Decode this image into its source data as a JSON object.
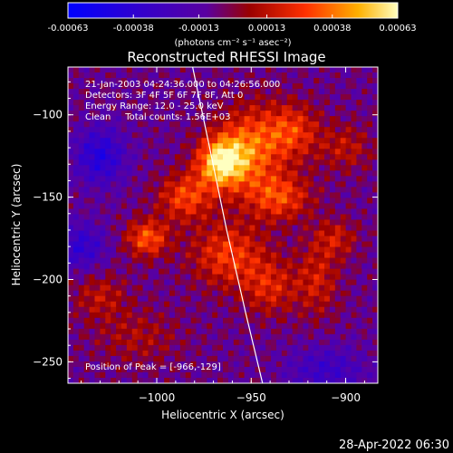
{
  "colorbar": {
    "ticks": [
      {
        "value": -0.00063,
        "label": "-0.00063"
      },
      {
        "value": -0.00038,
        "label": "-0.00038"
      },
      {
        "value": -0.00013,
        "label": "-0.00013"
      },
      {
        "value": 0.00013,
        "label": "0.00013"
      },
      {
        "value": 0.00038,
        "label": "0.00038"
      },
      {
        "value": 0.00063,
        "label": "0.00063"
      }
    ],
    "units": "(photons cm⁻² s⁻¹ asec⁻²)",
    "range": [
      -0.00063,
      0.00063
    ]
  },
  "chart_data": {
    "type": "heatmap",
    "title": "Reconstructed RHESSI Image",
    "xlabel": "Heliocentric X (arcsec)",
    "ylabel": "Heliocentric Y (arcsec)",
    "xlim": [
      -1047,
      -883
    ],
    "ylim": [
      -263,
      -71
    ],
    "x_ticks": [
      {
        "value": -1000,
        "label": "−1000"
      },
      {
        "value": -950,
        "label": "−950"
      },
      {
        "value": -900,
        "label": "−900"
      }
    ],
    "y_ticks": [
      {
        "value": -100,
        "label": "−100"
      },
      {
        "value": -150,
        "label": "−150"
      },
      {
        "value": -200,
        "label": "−200"
      },
      {
        "value": -250,
        "label": "−250"
      }
    ],
    "info_lines": [
      "21-Jan-2003 04:24:36.000 to 04:26:56.000",
      "Detectors: 3F 4F 5F 6F 7F 8F, Att 0",
      "Energy Range: 12.0 - 25.0 keV",
      "Clean     Total counts: 1.56E+03"
    ],
    "peak_label": "Position of Peak = [-966,-129]",
    "peak": {
      "x": -966,
      "y": -129
    },
    "limb_curve": [
      [
        -981,
        -71
      ],
      [
        -972,
        -120
      ],
      [
        -963,
        -170
      ],
      [
        -953,
        -220
      ],
      [
        -944,
        -263
      ]
    ],
    "sources": [
      {
        "x": -966,
        "y": -129,
        "sx": 9,
        "sy": 11,
        "amp": 0.00063
      },
      {
        "x": -950,
        "y": -120,
        "sx": 12,
        "sy": 18,
        "amp": 0.0004
      },
      {
        "x": -928,
        "y": -110,
        "sx": 10,
        "sy": 12,
        "amp": 0.00032
      },
      {
        "x": -935,
        "y": -150,
        "sx": 12,
        "sy": 10,
        "amp": 0.00035
      },
      {
        "x": -985,
        "y": -150,
        "sx": 10,
        "sy": 10,
        "amp": 0.00036
      },
      {
        "x": -1005,
        "y": -175,
        "sx": 8,
        "sy": 8,
        "amp": 0.0004
      },
      {
        "x": -962,
        "y": -185,
        "sx": 14,
        "sy": 14,
        "amp": 0.00034
      },
      {
        "x": -940,
        "y": -205,
        "sx": 10,
        "sy": 12,
        "amp": 0.00026
      },
      {
        "x": -915,
        "y": -200,
        "sx": 8,
        "sy": 16,
        "amp": 0.00024
      },
      {
        "x": -1030,
        "y": -210,
        "sx": 10,
        "sy": 10,
        "amp": 0.0002
      },
      {
        "x": -1010,
        "y": -235,
        "sx": 16,
        "sy": 12,
        "amp": 0.00016
      },
      {
        "x": -900,
        "y": -120,
        "sx": 10,
        "sy": 10,
        "amp": 0.0002
      },
      {
        "x": -905,
        "y": -175,
        "sx": 8,
        "sy": 8,
        "amp": 0.00022
      },
      {
        "x": -1030,
        "y": -125,
        "sx": 9,
        "sy": 12,
        "amp": -0.00035
      },
      {
        "x": -1040,
        "y": -180,
        "sx": 9,
        "sy": 10,
        "amp": -0.00028
      },
      {
        "x": -910,
        "y": -255,
        "sx": 14,
        "sy": 10,
        "amp": -0.00022
      }
    ]
  },
  "footer": {
    "date": "28-Apr-2022 06:30"
  }
}
